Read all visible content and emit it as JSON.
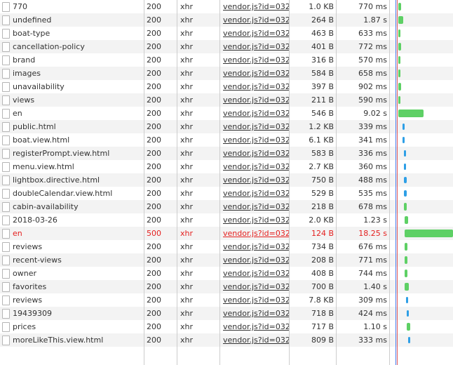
{
  "colors": {
    "waiting_green": "#5ed065",
    "receiving_blue": "#2e9fe6",
    "error_red": "#e4201f",
    "dom_line_blue": "#4a7ff0",
    "load_line_red": "#e25a5a"
  },
  "requests": [
    {
      "name": "770",
      "status": "200",
      "type": "xhr",
      "initiator": "vendor.js?id=032...",
      "size": "1.0 KB",
      "time": "770 ms",
      "bar_kind": "green",
      "bar_start": 2,
      "bar_width": 4
    },
    {
      "name": "undefined",
      "status": "200",
      "type": "xhr",
      "initiator": "vendor.js?id=032...",
      "size": "264 B",
      "time": "1.87 s",
      "bar_kind": "green",
      "bar_start": 2,
      "bar_width": 7
    },
    {
      "name": "boat-type",
      "status": "200",
      "type": "xhr",
      "initiator": "vendor.js?id=032...",
      "size": "463 B",
      "time": "633 ms",
      "bar_kind": "green",
      "bar_start": 2,
      "bar_width": 3
    },
    {
      "name": "cancellation-policy",
      "status": "200",
      "type": "xhr",
      "initiator": "vendor.js?id=032...",
      "size": "401 B",
      "time": "772 ms",
      "bar_kind": "green",
      "bar_start": 2,
      "bar_width": 4
    },
    {
      "name": "brand",
      "status": "200",
      "type": "xhr",
      "initiator": "vendor.js?id=032...",
      "size": "316 B",
      "time": "570 ms",
      "bar_kind": "green",
      "bar_start": 2,
      "bar_width": 3
    },
    {
      "name": "images",
      "status": "200",
      "type": "xhr",
      "initiator": "vendor.js?id=032...",
      "size": "584 B",
      "time": "658 ms",
      "bar_kind": "green",
      "bar_start": 2,
      "bar_width": 3
    },
    {
      "name": "unavailability",
      "status": "200",
      "type": "xhr",
      "initiator": "vendor.js?id=032...",
      "size": "397 B",
      "time": "902 ms",
      "bar_kind": "green",
      "bar_start": 2,
      "bar_width": 4
    },
    {
      "name": "views",
      "status": "200",
      "type": "xhr",
      "initiator": "vendor.js?id=032...",
      "size": "211 B",
      "time": "590 ms",
      "bar_kind": "green",
      "bar_start": 2,
      "bar_width": 3
    },
    {
      "name": "en",
      "status": "200",
      "type": "xhr",
      "initiator": "vendor.js?id=032...",
      "size": "546 B",
      "time": "9.02 s",
      "bar_kind": "green",
      "bar_start": 2,
      "bar_width": 36
    },
    {
      "name": "public.html",
      "status": "200",
      "type": "xhr",
      "initiator": "vendor.js?id=032...",
      "size": "1.2 KB",
      "time": "339 ms",
      "bar_kind": "blue",
      "bar_start": 8,
      "bar_width": 3
    },
    {
      "name": "boat.view.html",
      "status": "200",
      "type": "xhr",
      "initiator": "vendor.js?id=032...",
      "size": "6.1 KB",
      "time": "341 ms",
      "bar_kind": "blue",
      "bar_start": 8,
      "bar_width": 3
    },
    {
      "name": "registerPrompt.view.html",
      "status": "200",
      "type": "xhr",
      "initiator": "vendor.js?id=032...",
      "size": "583 B",
      "time": "336 ms",
      "bar_kind": "blue",
      "bar_start": 10,
      "bar_width": 3
    },
    {
      "name": "menu.view.html",
      "status": "200",
      "type": "xhr",
      "initiator": "vendor.js?id=032...",
      "size": "2.7 KB",
      "time": "360 ms",
      "bar_kind": "blue",
      "bar_start": 10,
      "bar_width": 3
    },
    {
      "name": "lightbox.directive.html",
      "status": "200",
      "type": "xhr",
      "initiator": "vendor.js?id=032...",
      "size": "750 B",
      "time": "488 ms",
      "bar_kind": "blue",
      "bar_start": 10,
      "bar_width": 4
    },
    {
      "name": "doubleCalendar.view.html",
      "status": "200",
      "type": "xhr",
      "initiator": "vendor.js?id=032...",
      "size": "529 B",
      "time": "535 ms",
      "bar_kind": "blue",
      "bar_start": 10,
      "bar_width": 4
    },
    {
      "name": "cabin-availability",
      "status": "200",
      "type": "xhr",
      "initiator": "vendor.js?id=032...",
      "size": "218 B",
      "time": "678 ms",
      "bar_kind": "green",
      "bar_start": 10,
      "bar_width": 4
    },
    {
      "name": "2018-03-26",
      "status": "200",
      "type": "xhr",
      "initiator": "vendor.js?id=032...",
      "size": "2.0 KB",
      "time": "1.23 s",
      "bar_kind": "green",
      "bar_start": 11,
      "bar_width": 5
    },
    {
      "name": "en",
      "status": "500",
      "type": "xhr",
      "initiator": "vendor.js?id=032...",
      "size": "124 B",
      "time": "18.25 s",
      "bar_kind": "green",
      "bar_start": 11,
      "bar_width": 70,
      "error": true
    },
    {
      "name": "reviews",
      "status": "200",
      "type": "xhr",
      "initiator": "vendor.js?id=032...",
      "size": "734 B",
      "time": "676 ms",
      "bar_kind": "green",
      "bar_start": 11,
      "bar_width": 4
    },
    {
      "name": "recent-views",
      "status": "200",
      "type": "xhr",
      "initiator": "vendor.js?id=032...",
      "size": "208 B",
      "time": "771 ms",
      "bar_kind": "green",
      "bar_start": 11,
      "bar_width": 4
    },
    {
      "name": "owner",
      "status": "200",
      "type": "xhr",
      "initiator": "vendor.js?id=032...",
      "size": "408 B",
      "time": "744 ms",
      "bar_kind": "green",
      "bar_start": 11,
      "bar_width": 4
    },
    {
      "name": "favorites",
      "status": "200",
      "type": "xhr",
      "initiator": "vendor.js?id=032...",
      "size": "700 B",
      "time": "1.40 s",
      "bar_kind": "green",
      "bar_start": 11,
      "bar_width": 6
    },
    {
      "name": "reviews",
      "status": "200",
      "type": "xhr",
      "initiator": "vendor.js?id=032...",
      "size": "7.8 KB",
      "time": "309 ms",
      "bar_kind": "blue",
      "bar_start": 13,
      "bar_width": 3
    },
    {
      "name": "19439309",
      "status": "200",
      "type": "xhr",
      "initiator": "vendor.js?id=032...",
      "size": "718 B",
      "time": "424 ms",
      "bar_kind": "blue",
      "bar_start": 14,
      "bar_width": 3
    },
    {
      "name": "prices",
      "status": "200",
      "type": "xhr",
      "initiator": "vendor.js?id=032...",
      "size": "717 B",
      "time": "1.10 s",
      "bar_kind": "green",
      "bar_start": 14,
      "bar_width": 5
    },
    {
      "name": "moreLikeThis.view.html",
      "status": "200",
      "type": "xhr",
      "initiator": "vendor.js?id=032...",
      "size": "809 B",
      "time": "333 ms",
      "bar_kind": "blue",
      "bar_start": 16,
      "bar_width": 3
    }
  ]
}
